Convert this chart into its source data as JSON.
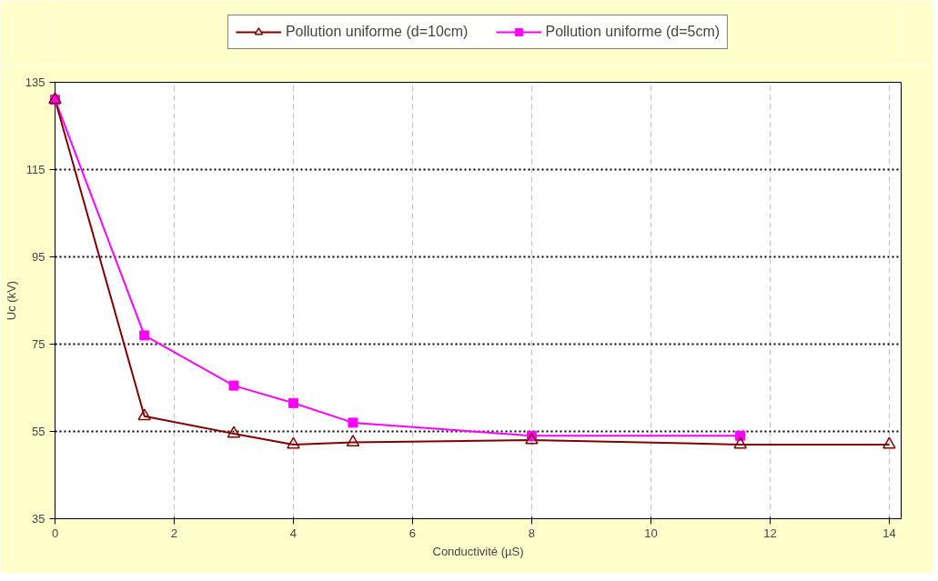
{
  "chart_data": {
    "type": "line",
    "xlabel": "Conductivité (µS)",
    "ylabel": "Uc (kV)",
    "xlim": [
      0,
      14.2
    ],
    "xticks": [
      0,
      2,
      4,
      6,
      8,
      10,
      12,
      14
    ],
    "ylim": [
      35,
      135
    ],
    "yticks": [
      35,
      55,
      75,
      95,
      115,
      135
    ],
    "grid": true,
    "legend": "top",
    "line_style": "solid",
    "series": [
      {
        "name": "Pollution uniforme (d=10cm)",
        "color": "#800000",
        "marker": "triangle",
        "x": [
          0,
          1.5,
          3,
          4,
          5,
          8,
          11.5,
          14
        ],
        "values": [
          131,
          58.5,
          54.5,
          52,
          52.5,
          53,
          52,
          52
        ]
      },
      {
        "name": "Pollution uniforme (d=5cm)",
        "color": "#ff00ff",
        "marker": "square",
        "x": [
          0,
          1.5,
          3,
          4,
          5,
          8,
          11.5
        ],
        "values": [
          131,
          77,
          65.5,
          61.5,
          57,
          54,
          54
        ]
      }
    ]
  }
}
